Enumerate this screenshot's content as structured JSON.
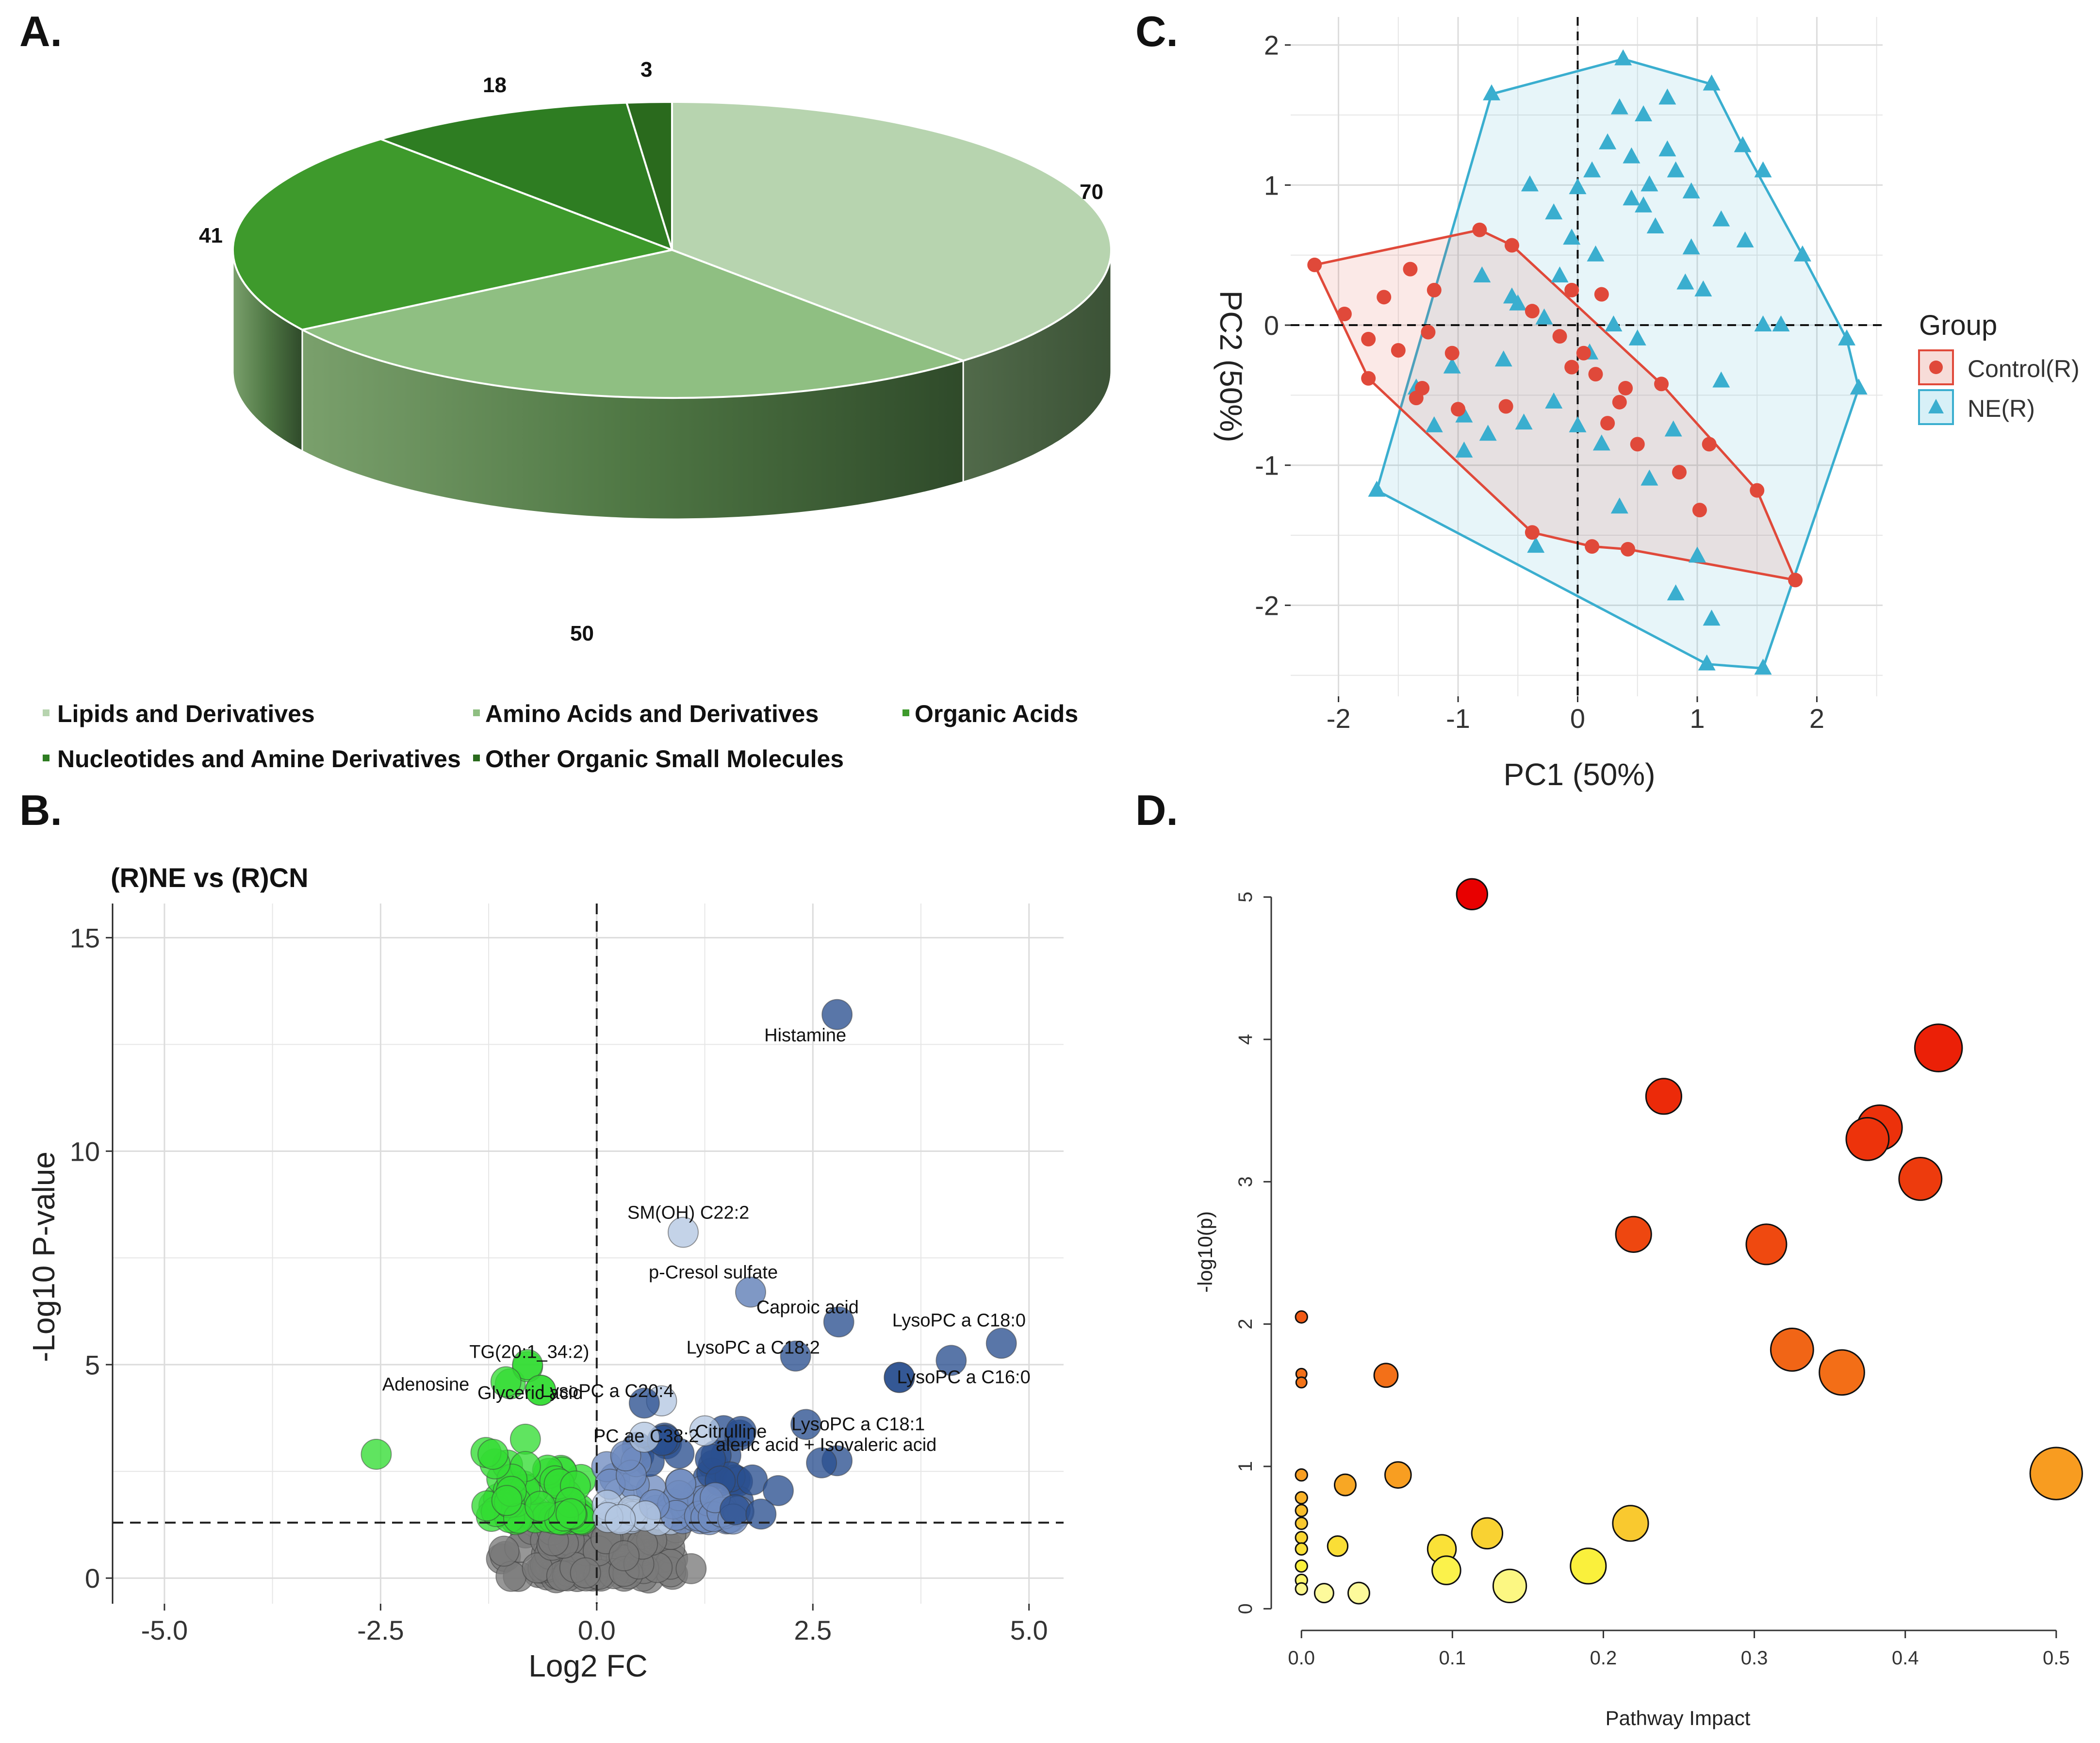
{
  "figure": {
    "panels": [
      "A.",
      "B.",
      "C.",
      "D."
    ]
  },
  "chart_data": [
    {
      "panel": "A.",
      "type": "pie",
      "style": "3d",
      "slices": [
        {
          "label": "Lipids and Derivatives",
          "value": 70,
          "color": "#b7d4af"
        },
        {
          "label": "Amino Acids and Derivatives",
          "value": 50,
          "color": "#8fbf82"
        },
        {
          "label": "Organic Acids",
          "value": 41,
          "color": "#3e9a2c"
        },
        {
          "label": "Nucleotides and Amine Derivatives",
          "value": 18,
          "color": "#2e7d22"
        },
        {
          "label": "Other Organic Small Molecules",
          "value": 3,
          "color": "#2a6a1d"
        }
      ],
      "value_labels": [
        "70",
        "50",
        "41",
        "18",
        "3"
      ],
      "legend": [
        {
          "label": "Lipids and Derivatives",
          "color": "#b7d4af"
        },
        {
          "label": "Amino Acids and Derivatives",
          "color": "#8fbf82"
        },
        {
          "label": "Organic Acids",
          "color": "#3e9a2c"
        },
        {
          "label": "Nucleotides and Amine Derivatives",
          "color": "#2e7d22"
        },
        {
          "label": "Other Organic Small Molecules",
          "color": "#2a6a1d"
        }
      ]
    },
    {
      "panel": "B.",
      "type": "scatter",
      "title": "(R)NE vs (R)CN",
      "xlabel": "Log2 FC",
      "ylabel": "-Log10 P-value",
      "xlim": [
        -5.6,
        5.4
      ],
      "ylim": [
        -0.6,
        15.8
      ],
      "xticks": [
        "-5.0",
        "-2.5",
        "0.0",
        "2.5",
        "5.0"
      ],
      "xtick_values": [
        -5,
        -2.5,
        0,
        2.5,
        5
      ],
      "yticks": [
        "0",
        "5",
        "10",
        "15"
      ],
      "ytick_values": [
        0,
        5,
        10,
        15
      ],
      "threshold_p": 1.3,
      "colors": {
        "down": "#33dd33",
        "up_light": "#b4c6e2",
        "up_dark": "#2a4f8f",
        "ns": "#7a7a7a"
      },
      "labeled_points": [
        {
          "label": "Histamine",
          "x": 2.78,
          "y": 13.2
        },
        {
          "label": "SM(OH) C22:2",
          "x": 1.0,
          "y": 8.1
        },
        {
          "label": "p-Cresol sulfate",
          "x": 1.78,
          "y": 6.7
        },
        {
          "label": "Caproic acid",
          "x": 2.8,
          "y": 6.0
        },
        {
          "label": "LysoPC a C18:0",
          "x": 4.68,
          "y": 5.5
        },
        {
          "label": "LysoPC a C18:2",
          "x": 2.3,
          "y": 5.2
        },
        {
          "label": "LysoPC a C16:0",
          "x": 3.5,
          "y": 4.7
        },
        {
          "label": "LysoPC a C20:4",
          "x": 0.75,
          "y": 4.15
        },
        {
          "label": "LysoPC a C18:1",
          "x": 2.42,
          "y": 3.6
        },
        {
          "label": "Citrulline",
          "x": 1.25,
          "y": 3.45
        },
        {
          "label": "aleric acid + Isovaleric acid",
          "x": 2.78,
          "y": 2.75
        },
        {
          "label": "PC ae C38:2",
          "x": 0.55,
          "y": 3.3
        },
        {
          "label": "TG(20:1_34:2)",
          "x": -0.8,
          "y": 5.0
        },
        {
          "label": "Adenosine",
          "x": -1.05,
          "y": 4.6
        },
        {
          "label": "Glyceric acid",
          "x": -0.65,
          "y": 4.4
        }
      ]
    },
    {
      "panel": "C.",
      "type": "scatter",
      "xlabel": "PC1 (50%)",
      "ylabel": "PC2 (50%)",
      "xlim": [
        -2.4,
        2.55
      ],
      "ylim": [
        -2.65,
        2.2
      ],
      "xticks": [
        "-2",
        "-1",
        "0",
        "1",
        "2"
      ],
      "xtick_values": [
        -2,
        -1,
        0,
        1,
        2
      ],
      "yticks": [
        "-2",
        "-1",
        "0",
        "1",
        "2"
      ],
      "ytick_values": [
        -2,
        -1,
        0,
        1,
        2
      ],
      "legend_title": "Group",
      "series": [
        {
          "name": "Control(R)",
          "color": "#e0493a",
          "marker": "circle",
          "points": [
            [
              -2.2,
              0.43
            ],
            [
              -1.95,
              0.08
            ],
            [
              -1.75,
              -0.38
            ],
            [
              -1.5,
              -0.18
            ],
            [
              -1.35,
              -0.52
            ],
            [
              -1.2,
              0.25
            ],
            [
              -1.05,
              -0.2
            ],
            [
              -0.82,
              0.68
            ],
            [
              -0.55,
              0.57
            ],
            [
              -0.38,
              0.1
            ],
            [
              -0.05,
              0.25
            ],
            [
              0.2,
              0.22
            ],
            [
              0.4,
              -0.45
            ],
            [
              0.7,
              -0.42
            ],
            [
              1.5,
              -1.18
            ],
            [
              1.82,
              -1.82
            ],
            [
              0.42,
              -1.6
            ],
            [
              0.12,
              -1.58
            ],
            [
              -0.38,
              -1.48
            ],
            [
              -1.62,
              0.2
            ],
            [
              -1.4,
              0.4
            ],
            [
              -1.25,
              -0.05
            ],
            [
              -1.0,
              -0.6
            ],
            [
              -0.6,
              -0.58
            ],
            [
              -0.15,
              -0.08
            ],
            [
              -0.05,
              -0.3
            ],
            [
              0.15,
              -0.35
            ],
            [
              0.35,
              -0.55
            ],
            [
              0.5,
              -0.85
            ],
            [
              0.85,
              -1.05
            ],
            [
              1.02,
              -1.32
            ],
            [
              1.1,
              -0.85
            ],
            [
              -1.75,
              -0.1
            ],
            [
              -1.3,
              -0.45
            ],
            [
              0.05,
              -0.2
            ],
            [
              0.25,
              -0.7
            ]
          ]
        },
        {
          "name": "NE(R)",
          "color": "#3aaecf",
          "marker": "triangle",
          "points": [
            [
              -0.72,
              1.65
            ],
            [
              0.38,
              1.9
            ],
            [
              1.12,
              1.72
            ],
            [
              1.38,
              1.28
            ],
            [
              1.88,
              0.5
            ],
            [
              2.25,
              -0.1
            ],
            [
              2.35,
              -0.45
            ],
            [
              1.55,
              -2.45
            ],
            [
              1.08,
              -2.42
            ],
            [
              -1.68,
              -1.18
            ],
            [
              -0.4,
              1.0
            ],
            [
              -0.2,
              0.8
            ],
            [
              0.0,
              0.98
            ],
            [
              0.12,
              1.1
            ],
            [
              0.35,
              1.55
            ],
            [
              0.55,
              1.5
            ],
            [
              0.75,
              1.62
            ],
            [
              0.45,
              1.2
            ],
            [
              0.6,
              1.0
            ],
            [
              0.82,
              1.1
            ],
            [
              0.95,
              0.95
            ],
            [
              1.2,
              0.75
            ],
            [
              0.9,
              0.3
            ],
            [
              1.05,
              0.25
            ],
            [
              1.55,
              0.0
            ],
            [
              1.2,
              -0.4
            ],
            [
              0.5,
              -0.1
            ],
            [
              0.15,
              0.5
            ],
            [
              -0.15,
              0.35
            ],
            [
              -0.5,
              0.15
            ],
            [
              -0.8,
              0.35
            ],
            [
              -1.05,
              -0.3
            ],
            [
              -1.2,
              -0.72
            ],
            [
              -0.95,
              -0.9
            ],
            [
              -0.75,
              -0.78
            ],
            [
              -0.45,
              -0.7
            ],
            [
              -0.2,
              -0.55
            ],
            [
              0.0,
              -0.72
            ],
            [
              0.2,
              -0.85
            ],
            [
              0.35,
              -1.3
            ],
            [
              0.6,
              -1.1
            ],
            [
              0.8,
              -0.75
            ],
            [
              1.0,
              -1.65
            ],
            [
              1.12,
              -2.1
            ],
            [
              0.82,
              -1.92
            ],
            [
              -0.35,
              -1.58
            ],
            [
              1.55,
              1.1
            ],
            [
              0.65,
              0.7
            ],
            [
              0.25,
              1.3
            ],
            [
              -0.05,
              0.62
            ],
            [
              0.45,
              0.9
            ],
            [
              -0.55,
              0.2
            ],
            [
              -0.28,
              0.05
            ],
            [
              0.95,
              0.55
            ],
            [
              1.4,
              0.6
            ],
            [
              1.7,
              0.0
            ],
            [
              0.3,
              0.0
            ],
            [
              -1.35,
              -0.45
            ],
            [
              -0.62,
              -0.25
            ],
            [
              -0.95,
              -0.65
            ],
            [
              0.55,
              0.85
            ],
            [
              0.1,
              -0.2
            ],
            [
              0.75,
              1.25
            ]
          ]
        }
      ],
      "hull_ne": [
        [
          -0.72,
          1.65
        ],
        [
          0.38,
          1.9
        ],
        [
          1.12,
          1.72
        ],
        [
          1.38,
          1.28
        ],
        [
          1.88,
          0.5
        ],
        [
          2.25,
          -0.1
        ],
        [
          2.35,
          -0.45
        ],
        [
          1.55,
          -2.45
        ],
        [
          1.08,
          -2.42
        ],
        [
          -1.68,
          -1.18
        ]
      ],
      "hull_control": [
        [
          -2.2,
          0.43
        ],
        [
          -0.82,
          0.68
        ],
        [
          -0.55,
          0.57
        ],
        [
          0.7,
          -0.42
        ],
        [
          1.5,
          -1.18
        ],
        [
          1.82,
          -1.82
        ],
        [
          0.42,
          -1.6
        ],
        [
          0.12,
          -1.58
        ],
        [
          -0.38,
          -1.48
        ],
        [
          -1.75,
          -0.38
        ]
      ]
    },
    {
      "panel": "D.",
      "type": "scatter",
      "style": "bubble",
      "xlabel": "Pathway Impact",
      "ylabel": "-log10(p)",
      "xlim": [
        -0.02,
        0.52
      ],
      "ylim": [
        -0.05,
        5.2
      ],
      "xticks": [
        "0.0",
        "0.1",
        "0.2",
        "0.3",
        "0.4",
        "0.5"
      ],
      "xtick_values": [
        0,
        0.1,
        0.2,
        0.3,
        0.4,
        0.5
      ],
      "yticks": [
        "0",
        "1",
        "2",
        "3",
        "4",
        "5"
      ],
      "ytick_values": [
        0,
        1,
        2,
        3,
        4,
        5
      ],
      "points": [
        {
          "x": 0.113,
          "y": 5.02,
          "size": 26
        },
        {
          "x": 0.422,
          "y": 3.94,
          "size": 40
        },
        {
          "x": 0.24,
          "y": 3.6,
          "size": 30
        },
        {
          "x": 0.383,
          "y": 3.38,
          "size": 38
        },
        {
          "x": 0.375,
          "y": 3.3,
          "size": 36
        },
        {
          "x": 0.41,
          "y": 3.02,
          "size": 36
        },
        {
          "x": 0.22,
          "y": 2.63,
          "size": 30
        },
        {
          "x": 0.308,
          "y": 2.56,
          "size": 34
        },
        {
          "x": 0.325,
          "y": 1.82,
          "size": 36
        },
        {
          "x": 0.358,
          "y": 1.66,
          "size": 38
        },
        {
          "x": 0.0,
          "y": 2.05,
          "size": 10
        },
        {
          "x": 0.0,
          "y": 1.65,
          "size": 9
        },
        {
          "x": 0.0,
          "y": 1.59,
          "size": 9
        },
        {
          "x": 0.056,
          "y": 1.64,
          "size": 20
        },
        {
          "x": 0.5,
          "y": 0.95,
          "size": 44
        },
        {
          "x": 0.064,
          "y": 0.94,
          "size": 22
        },
        {
          "x": 0.029,
          "y": 0.87,
          "size": 18
        },
        {
          "x": 0.0,
          "y": 0.94,
          "size": 10
        },
        {
          "x": 0.218,
          "y": 0.6,
          "size": 30
        },
        {
          "x": 0.123,
          "y": 0.53,
          "size": 26
        },
        {
          "x": 0.024,
          "y": 0.44,
          "size": 17
        },
        {
          "x": 0.093,
          "y": 0.42,
          "size": 24
        },
        {
          "x": 0.096,
          "y": 0.27,
          "size": 24
        },
        {
          "x": 0.19,
          "y": 0.3,
          "size": 30
        },
        {
          "x": 0.138,
          "y": 0.16,
          "size": 28
        },
        {
          "x": 0.038,
          "y": 0.11,
          "size": 18
        },
        {
          "x": 0.015,
          "y": 0.11,
          "size": 16
        },
        {
          "x": 0.0,
          "y": 0.78,
          "size": 10
        },
        {
          "x": 0.0,
          "y": 0.69,
          "size": 10
        },
        {
          "x": 0.0,
          "y": 0.6,
          "size": 10
        },
        {
          "x": 0.0,
          "y": 0.5,
          "size": 10
        },
        {
          "x": 0.0,
          "y": 0.42,
          "size": 10
        },
        {
          "x": 0.0,
          "y": 0.3,
          "size": 10
        },
        {
          "x": 0.0,
          "y": 0.2,
          "size": 10
        },
        {
          "x": 0.0,
          "y": 0.14,
          "size": 10
        }
      ]
    }
  ]
}
